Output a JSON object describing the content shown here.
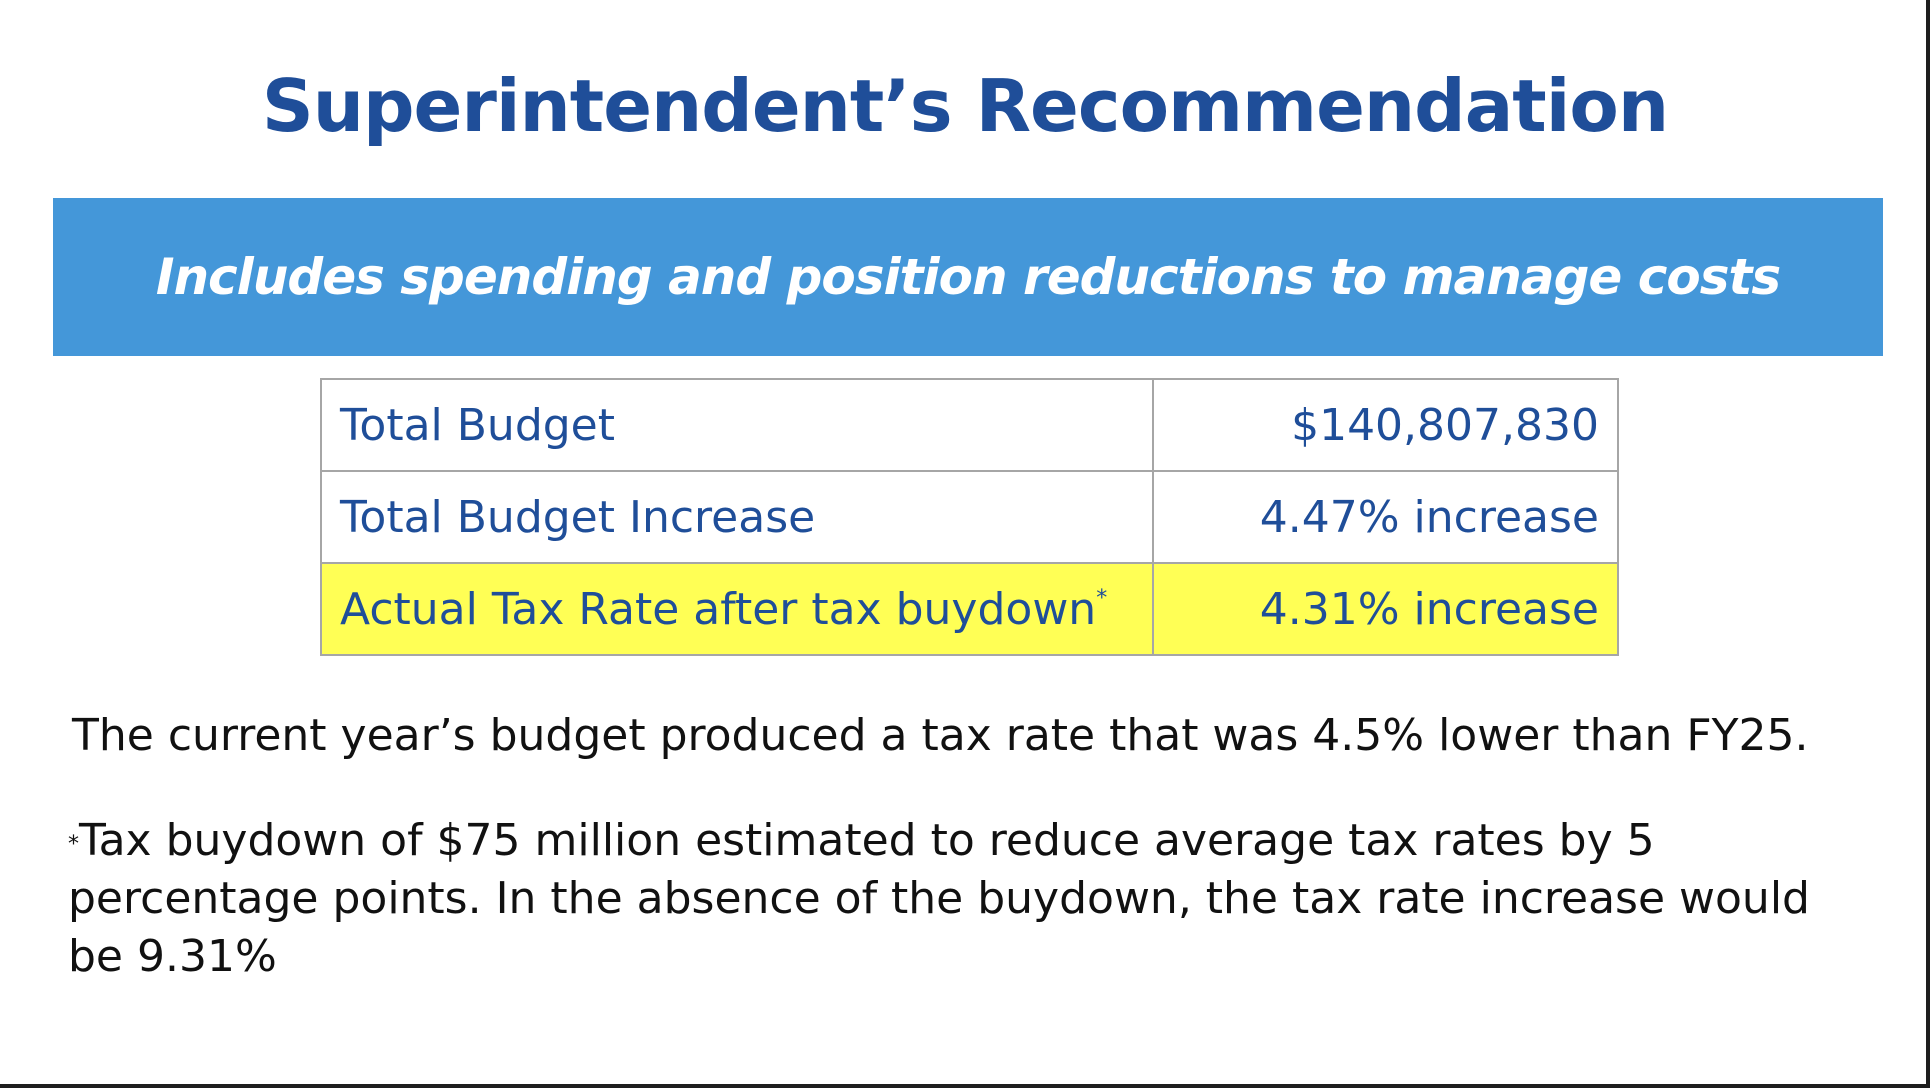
{
  "title": "Superintendent’s Recommendation",
  "banner": "Includes spending and position reductions to manage costs",
  "table": {
    "rows": [
      {
        "label": "Total Budget",
        "value": "$140,807,830",
        "highlighted": false
      },
      {
        "label": "Total Budget Increase",
        "value": "4.47% increase",
        "highlighted": false
      },
      {
        "label": "Actual Tax Rate after tax buydown",
        "label_marker": "*",
        "value": "4.31% increase",
        "highlighted": true
      }
    ]
  },
  "note": "The current year’s budget produced a tax rate that was 4.5% lower than FY25.",
  "footnote": {
    "marker": "*",
    "text": "Tax buydown of $75 million estimated to reduce average tax rates by 5 percentage points. In the absence of the buydown, the tax rate increase would be 9.31%"
  },
  "colors": {
    "title": "#1f4e99",
    "banner_bg": "#4497d9",
    "highlight": "#ffff55"
  }
}
